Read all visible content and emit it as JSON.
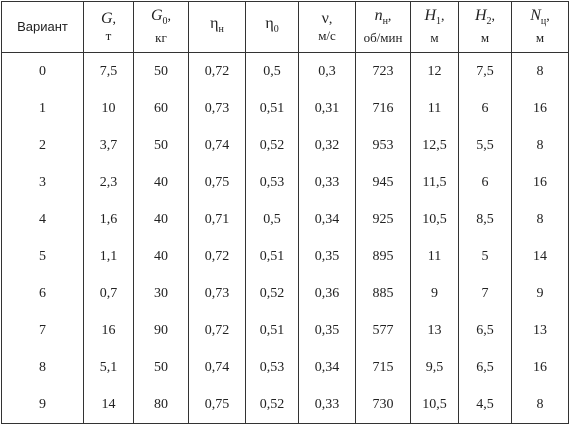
{
  "table": {
    "header": [
      {
        "text": "Вариант"
      },
      {
        "symbol": "G",
        "sep": ",",
        "unit": "т"
      },
      {
        "symbol": "G",
        "sub": "0",
        "sep": ",",
        "unit": "кг"
      },
      {
        "symbol": "η",
        "sub": "н"
      },
      {
        "symbol": "η",
        "sub": "0"
      },
      {
        "symbol": "ν",
        "sep": ",",
        "unit": "м/с"
      },
      {
        "symbol": "n",
        "sub": "н",
        "sep": ",",
        "unit": "об/мин"
      },
      {
        "symbol": "H",
        "sub": "1",
        "sep": ",",
        "unit": "м"
      },
      {
        "symbol": "H",
        "sub": "2",
        "sep": ",",
        "unit": "м"
      },
      {
        "symbol": "N",
        "sub": "ц",
        "sep": ",",
        "unit": "м"
      }
    ],
    "rows": [
      [
        "0",
        "7,5",
        "50",
        "0,72",
        "0,5",
        "0,3",
        "723",
        "12",
        "7,5",
        "8"
      ],
      [
        "1",
        "10",
        "60",
        "0,73",
        "0,51",
        "0,31",
        "716",
        "11",
        "6",
        "16"
      ],
      [
        "2",
        "3,7",
        "50",
        "0,74",
        "0,52",
        "0,32",
        "953",
        "12,5",
        "5,5",
        "8"
      ],
      [
        "3",
        "2,3",
        "40",
        "0,75",
        "0,53",
        "0,33",
        "945",
        "11,5",
        "6",
        "16"
      ],
      [
        "4",
        "1,6",
        "40",
        "0,71",
        "0,5",
        "0,34",
        "925",
        "10,5",
        "8,5",
        "8"
      ],
      [
        "5",
        "1,1",
        "40",
        "0,72",
        "0,51",
        "0,35",
        "895",
        "11",
        "5",
        "14"
      ],
      [
        "6",
        "0,7",
        "30",
        "0,73",
        "0,52",
        "0,36",
        "885",
        "9",
        "7",
        "9"
      ],
      [
        "7",
        "16",
        "90",
        "0,72",
        "0,51",
        "0,35",
        "577",
        "13",
        "6,5",
        "13"
      ],
      [
        "8",
        "5,1",
        "50",
        "0,74",
        "0,53",
        "0,34",
        "715",
        "9,5",
        "6,5",
        "16"
      ],
      [
        "9",
        "14",
        "80",
        "0,75",
        "0,52",
        "0,33",
        "730",
        "10,5",
        "4,5",
        "8"
      ]
    ]
  }
}
